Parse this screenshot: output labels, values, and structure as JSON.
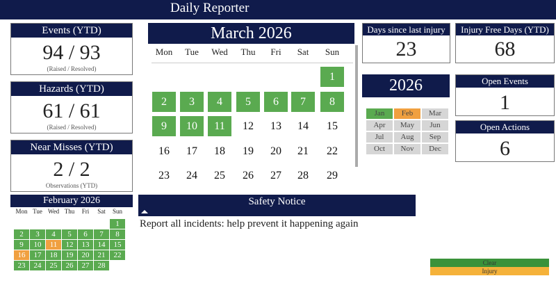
{
  "header": {
    "title": "Daily Reporter"
  },
  "events": {
    "title": "Events (YTD)",
    "value": "94 / 93",
    "sub": "(Raised / Resolved)"
  },
  "hazards": {
    "title": "Hazards (YTD)",
    "value": "61 / 61",
    "sub": "(Raised / Resolved)"
  },
  "near_misses": {
    "title": "Near Misses (YTD)",
    "value": "2 / 2",
    "sub": "Observations (YTD)"
  },
  "feb": {
    "title": "February 2026",
    "days": [
      "Mon",
      "Tue",
      "Wed",
      "Thu",
      "Fri",
      "Sat",
      "Sun"
    ],
    "start_offset": 6,
    "count": 28,
    "injury_days": [
      11,
      16
    ]
  },
  "march": {
    "title": "March 2026",
    "days": [
      "Mon",
      "Tue",
      "Wed",
      "Thu",
      "Fri",
      "Sat",
      "Sun"
    ],
    "start_offset": 6,
    "count": 31,
    "clear_through": 11
  },
  "days_since": {
    "title": "Days since last injury",
    "value": "23"
  },
  "injury_free": {
    "title": "Injury Free Days (YTD)",
    "value": "68"
  },
  "year": {
    "title": "2026",
    "months": [
      {
        "m": "Jan",
        "s": "clear"
      },
      {
        "m": "Feb",
        "s": "injury"
      },
      {
        "m": "Mar",
        "s": ""
      },
      {
        "m": "Apr",
        "s": ""
      },
      {
        "m": "May",
        "s": ""
      },
      {
        "m": "Jun",
        "s": ""
      },
      {
        "m": "Jul",
        "s": ""
      },
      {
        "m": "Aug",
        "s": ""
      },
      {
        "m": "Sep",
        "s": ""
      },
      {
        "m": "Oct",
        "s": ""
      },
      {
        "m": "Nov",
        "s": ""
      },
      {
        "m": "Dec",
        "s": ""
      }
    ]
  },
  "open_events": {
    "title": "Open Events",
    "value": "1"
  },
  "open_actions": {
    "title": "Open Actions",
    "value": "6"
  },
  "notice": {
    "title": "Safety Notice",
    "text": "Report all incidents: help prevent it happening again"
  },
  "legend": {
    "clear": "Clear",
    "injury": "Injury"
  },
  "colors": {
    "navy": "#101b4b",
    "clear": "#5aaa50",
    "injury": "#f0a040"
  }
}
